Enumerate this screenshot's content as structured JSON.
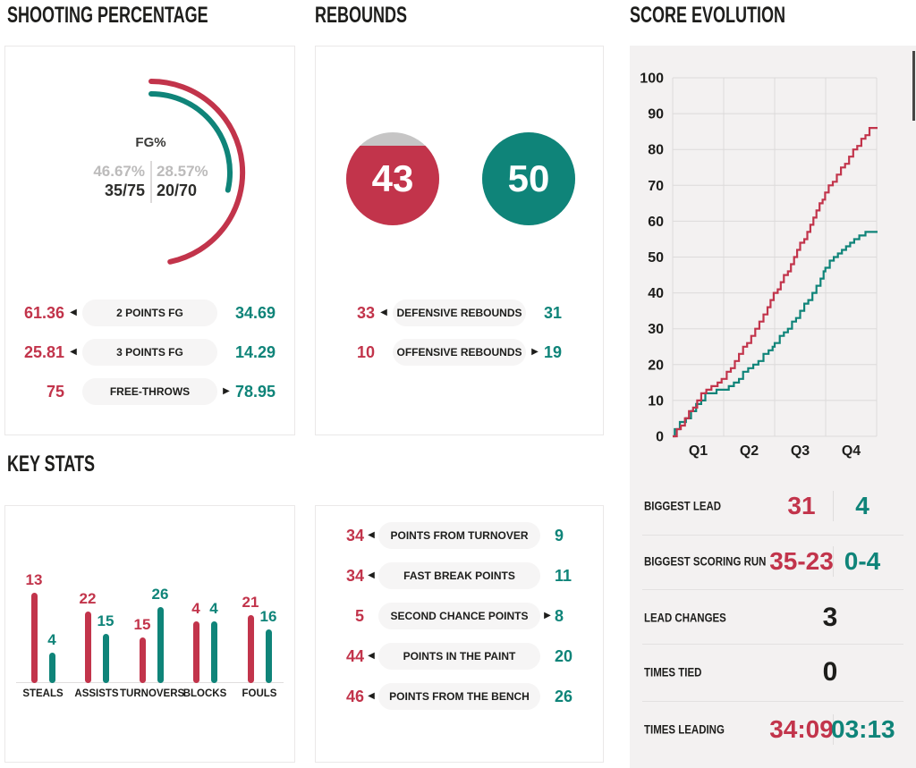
{
  "colors": {
    "red": "#c2344b",
    "teal": "#0f8479",
    "dark": "#1d1d1b",
    "gray_text": "#bcbbbb",
    "circle_gray": "#c6c5c5",
    "pill_bg": "#f6f5f5",
    "panel_border": "#eae8e8",
    "right_panel_bg": "#f3f1f1",
    "gridline": "#dcdada"
  },
  "chart_data": [
    {
      "type": "gauge",
      "title": "SHOOTING PERCENTAGE",
      "label": "FG%",
      "series": [
        {
          "name": "home",
          "pct": 46.67,
          "pct_text": "46.67%",
          "frac_text": "35/75",
          "color": "#c2344b"
        },
        {
          "name": "away",
          "pct": 28.57,
          "pct_text": "28.57%",
          "frac_text": "20/70",
          "color": "#0f8479"
        }
      ]
    },
    {
      "type": "circle",
      "title": "REBOUNDS",
      "series": [
        {
          "name": "home",
          "value": 43,
          "fill_pct": 86,
          "color": "#c2344b"
        },
        {
          "name": "away",
          "value": 50,
          "fill_pct": 100,
          "color": "#0f8479"
        }
      ]
    },
    {
      "type": "bar",
      "title": "KEY STATS",
      "categories": [
        "STEALS",
        "ASSISTS",
        "TURNOVERS",
        "BLOCKS",
        "FOULS"
      ],
      "series": [
        {
          "name": "home",
          "values": [
            13,
            22,
            15,
            4,
            21
          ],
          "color": "#c2344b"
        },
        {
          "name": "away",
          "values": [
            4,
            15,
            26,
            4,
            16
          ],
          "color": "#0f8479"
        }
      ],
      "bar_height_hints": [
        [
          101,
          34
        ],
        [
          80,
          55
        ],
        [
          51,
          85
        ],
        [
          69,
          69
        ],
        [
          76,
          60
        ]
      ]
    },
    {
      "type": "line",
      "title": "SCORE EVOLUTION",
      "xlabel": "quarters",
      "ylabel": "points",
      "ylim": [
        0,
        100
      ],
      "yticks": [
        0,
        10,
        20,
        30,
        40,
        50,
        60,
        70,
        80,
        90,
        100
      ],
      "xticks": [
        "Q1",
        "Q2",
        "Q3",
        "Q4"
      ],
      "x_minutes": 40,
      "grid": true,
      "series": [
        {
          "name": "home",
          "color": "#c2344b",
          "final": 86,
          "points": [
            [
              0.8,
              2
            ],
            [
              1.6,
              3
            ],
            [
              2.4,
              5
            ],
            [
              3.2,
              7
            ],
            [
              4.0,
              8
            ],
            [
              4.8,
              10
            ],
            [
              5.6,
              12
            ],
            [
              6.6,
              13
            ],
            [
              7.6,
              14
            ],
            [
              8.8,
              15
            ],
            [
              9.6,
              16
            ],
            [
              10.6,
              18
            ],
            [
              11.4,
              19
            ],
            [
              12.2,
              21
            ],
            [
              13.0,
              23
            ],
            [
              13.8,
              25
            ],
            [
              14.6,
              26
            ],
            [
              15.4,
              28
            ],
            [
              16.2,
              30
            ],
            [
              17.0,
              32
            ],
            [
              17.8,
              34
            ],
            [
              18.6,
              36
            ],
            [
              19.2,
              38
            ],
            [
              19.8,
              40
            ],
            [
              20.6,
              41
            ],
            [
              21.2,
              43
            ],
            [
              21.8,
              45
            ],
            [
              22.6,
              46
            ],
            [
              23.2,
              48
            ],
            [
              23.8,
              50
            ],
            [
              24.4,
              52
            ],
            [
              25.0,
              54
            ],
            [
              25.8,
              55
            ],
            [
              26.4,
              57
            ],
            [
              27.0,
              59
            ],
            [
              27.6,
              61
            ],
            [
              28.2,
              63
            ],
            [
              28.8,
              65
            ],
            [
              29.4,
              66
            ],
            [
              29.9,
              68
            ],
            [
              30.6,
              70
            ],
            [
              31.4,
              71
            ],
            [
              32.2,
              73
            ],
            [
              33.0,
              75
            ],
            [
              33.8,
              76
            ],
            [
              34.6,
              78
            ],
            [
              35.4,
              80
            ],
            [
              36.2,
              81
            ],
            [
              37.0,
              83
            ],
            [
              37.8,
              84
            ],
            [
              38.6,
              86
            ]
          ]
        },
        {
          "name": "away",
          "color": "#0f8479",
          "final": 57,
          "points": [
            [
              0.4,
              2
            ],
            [
              1.4,
              4
            ],
            [
              2.6,
              5
            ],
            [
              3.6,
              7
            ],
            [
              4.6,
              9
            ],
            [
              5.6,
              10
            ],
            [
              6.4,
              12
            ],
            [
              8.6,
              13
            ],
            [
              11.0,
              14
            ],
            [
              12.0,
              15
            ],
            [
              13.0,
              16
            ],
            [
              13.8,
              18
            ],
            [
              14.8,
              19
            ],
            [
              15.8,
              20
            ],
            [
              16.8,
              21
            ],
            [
              17.8,
              23
            ],
            [
              18.8,
              24
            ],
            [
              19.6,
              25
            ],
            [
              20.0,
              26
            ],
            [
              21.0,
              28
            ],
            [
              21.8,
              29
            ],
            [
              22.6,
              30
            ],
            [
              23.4,
              32
            ],
            [
              24.2,
              33
            ],
            [
              25.0,
              35
            ],
            [
              25.8,
              37
            ],
            [
              26.6,
              38
            ],
            [
              27.4,
              40
            ],
            [
              28.2,
              42
            ],
            [
              29.0,
              44
            ],
            [
              29.6,
              46
            ],
            [
              29.95,
              47
            ],
            [
              30.8,
              49
            ],
            [
              31.6,
              50
            ],
            [
              32.4,
              51
            ],
            [
              33.2,
              52
            ],
            [
              34.0,
              53
            ],
            [
              34.8,
              54
            ],
            [
              35.6,
              55
            ],
            [
              36.6,
              56
            ],
            [
              37.8,
              57
            ]
          ]
        }
      ]
    }
  ],
  "shooting_rows": [
    {
      "home": "61.36",
      "label": "2 POINTS FG",
      "away": "34.69",
      "leader": "home"
    },
    {
      "home": "25.81",
      "label": "3 POINTS FG",
      "away": "14.29",
      "leader": "home"
    },
    {
      "home": "75",
      "label": "FREE-THROWS",
      "away": "78.95",
      "leader": "away"
    }
  ],
  "rebound_rows": [
    {
      "home": "33",
      "label": "DEFENSIVE REBOUNDS",
      "away": "31",
      "leader": "home"
    },
    {
      "home": "10",
      "label": "OFFENSIVE REBOUNDS",
      "away": "19",
      "leader": "away"
    }
  ],
  "points_rows": [
    {
      "home": "34",
      "label": "POINTS FROM TURNOVER",
      "away": "9",
      "leader": "home"
    },
    {
      "home": "34",
      "label": "FAST BREAK POINTS",
      "away": "11",
      "leader": "home"
    },
    {
      "home": "5",
      "label": "SECOND CHANCE POINTS",
      "away": "8",
      "leader": "away"
    },
    {
      "home": "44",
      "label": "POINTS IN THE PAINT",
      "away": "20",
      "leader": "home"
    },
    {
      "home": "46",
      "label": "POINTS FROM THE BENCH",
      "away": "26",
      "leader": "home"
    }
  ],
  "game_flow": {
    "rows": [
      {
        "label": "BIGGEST LEAD",
        "home": "31",
        "away": "4"
      },
      {
        "label": "BIGGEST SCORING RUN",
        "home": "35-23",
        "away": "0-4"
      },
      {
        "label": "LEAD CHANGES",
        "value": "3"
      },
      {
        "label": "TIMES TIED",
        "value": "0"
      },
      {
        "label": "TIMES LEADING",
        "home": "34:09",
        "away": "03:13"
      }
    ]
  }
}
